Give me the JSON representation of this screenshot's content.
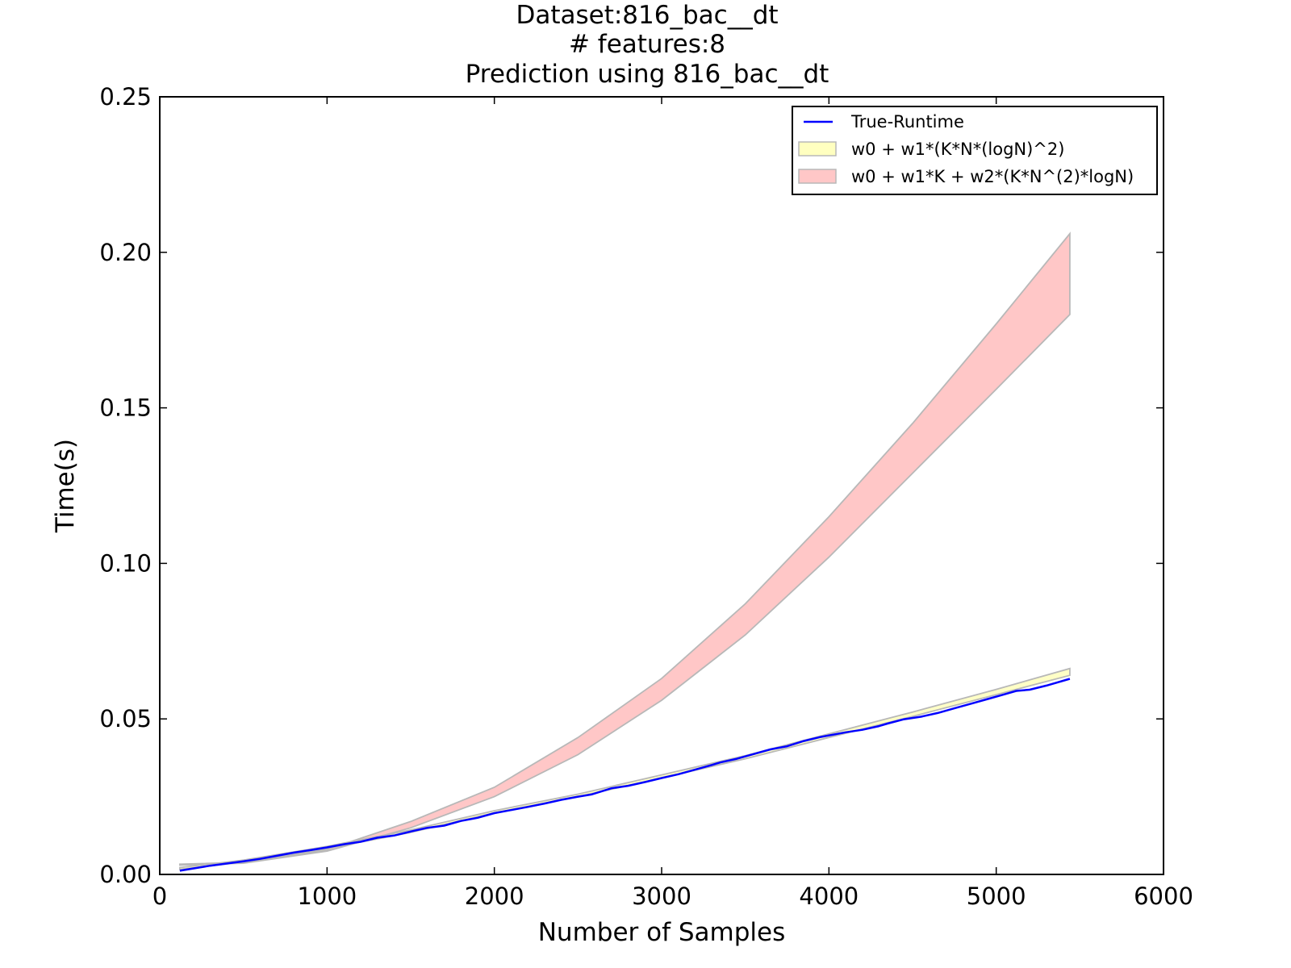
{
  "chart_data": {
    "type": "area",
    "title_lines": [
      "Dataset:816_bac__dt",
      "# features:8",
      "Prediction using 816_bac__dt"
    ],
    "xlabel": "Number of Samples",
    "ylabel": "Time(s)",
    "xlim": [
      0,
      6000
    ],
    "ylim": [
      0,
      0.25
    ],
    "xticks": [
      0,
      1000,
      2000,
      3000,
      4000,
      5000,
      6000
    ],
    "xtick_labels": [
      "0",
      "1000",
      "2000",
      "3000",
      "4000",
      "5000",
      "6000"
    ],
    "yticks": [
      0,
      0.05,
      0.1,
      0.15,
      0.2,
      0.25
    ],
    "ytick_labels": [
      "0.00",
      "0.05",
      "0.10",
      "0.15",
      "0.20",
      "0.25"
    ],
    "grid": false,
    "legend_placement": "top-right",
    "series": [
      {
        "name": "True-Runtime",
        "kind": "line",
        "color": "#0000ff",
        "x": [
          120,
          300,
          500,
          600,
          700,
          800,
          900,
          1000,
          1100,
          1200,
          1300,
          1400,
          1500,
          1600,
          1700,
          1800,
          1900,
          2000,
          2100,
          2200,
          2300,
          2400,
          2500,
          2580,
          2700,
          2800,
          2900,
          3000,
          3100,
          3200,
          3300,
          3350,
          3450,
          3550,
          3650,
          3750,
          3850,
          3950,
          4100,
          4200,
          4300,
          4350,
          4450,
          4550,
          4650,
          4750,
          4850,
          4950,
          5050,
          5120,
          5200,
          5300,
          5440
        ],
        "y": [
          0.0012,
          0.0028,
          0.0042,
          0.005,
          0.006,
          0.007,
          0.0078,
          0.0087,
          0.0097,
          0.0105,
          0.0118,
          0.0125,
          0.0138,
          0.015,
          0.0157,
          0.0172,
          0.0182,
          0.0197,
          0.0207,
          0.0217,
          0.0228,
          0.024,
          0.025,
          0.0257,
          0.0277,
          0.0285,
          0.0297,
          0.031,
          0.0322,
          0.0337,
          0.0352,
          0.036,
          0.0372,
          0.0387,
          0.0402,
          0.0412,
          0.0429,
          0.0442,
          0.0457,
          0.0465,
          0.0477,
          0.0485,
          0.0499,
          0.0507,
          0.0519,
          0.0534,
          0.0549,
          0.0564,
          0.0579,
          0.059,
          0.0594,
          0.0607,
          0.0629
        ]
      },
      {
        "name": "w0 + w1*(K*N*(logN)^2)",
        "kind": "band",
        "color": "#ffffc0",
        "x": [
          120,
          500,
          1000,
          1500,
          2000,
          2500,
          3000,
          3500,
          4000,
          4500,
          5000,
          5440
        ],
        "y_low": [
          0.0016,
          0.004,
          0.0083,
          0.0135,
          0.0198,
          0.025,
          0.031,
          0.0372,
          0.044,
          0.0508,
          0.0578,
          0.064
        ],
        "y_high": [
          0.0022,
          0.0046,
          0.009,
          0.0143,
          0.0205,
          0.0258,
          0.032,
          0.0382,
          0.0452,
          0.0522,
          0.0595,
          0.0662
        ]
      },
      {
        "name": "w0 + w1*K + w2*(K*N^(2)*logN)",
        "kind": "band",
        "color": "#ff9999",
        "x": [
          120,
          500,
          1000,
          1500,
          2000,
          2500,
          3000,
          3500,
          4000,
          4500,
          5000,
          5440
        ],
        "y_low": [
          0.003,
          0.0036,
          0.0075,
          0.015,
          0.025,
          0.0385,
          0.056,
          0.077,
          0.102,
          0.129,
          0.156,
          0.18
        ],
        "y_high": [
          0.0033,
          0.0039,
          0.008,
          0.017,
          0.028,
          0.044,
          0.063,
          0.087,
          0.115,
          0.145,
          0.177,
          0.206
        ]
      }
    ]
  }
}
